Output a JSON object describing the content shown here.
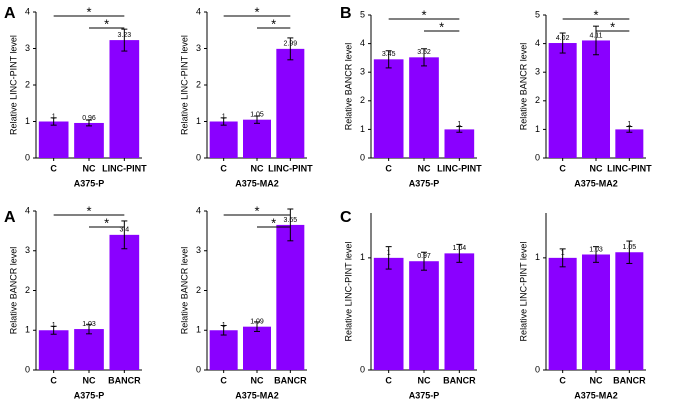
{
  "panel_letters": [
    "A",
    "B",
    "A",
    "C"
  ],
  "chart_data": [
    {
      "type": "bar",
      "y_label": "Relative LINC-PINT level",
      "x_label": "A375-P",
      "categories": [
        "C",
        "NC",
        "LINC-PINT"
      ],
      "values": [
        1,
        0.96,
        3.23
      ],
      "errors": [
        0.1,
        0.08,
        0.3
      ],
      "color": "#8a00ff",
      "ylim": [
        0,
        4
      ],
      "yticks": [
        0,
        1,
        2,
        3,
        4
      ],
      "annotations": [
        "*",
        "*"
      ]
    },
    {
      "type": "bar",
      "y_label": "Relative LINC-PINT level",
      "x_label": "A375-MA2",
      "categories": [
        "C",
        "NC",
        "LINC-PINT"
      ],
      "values": [
        1,
        1.05,
        2.99
      ],
      "errors": [
        0.1,
        0.1,
        0.3
      ],
      "color": "#8a00ff",
      "ylim": [
        0,
        4
      ],
      "yticks": [
        0,
        1,
        2,
        3,
        4
      ],
      "annotations": [
        "*",
        "*"
      ]
    },
    {
      "type": "bar",
      "y_label": "Relative BANCR level",
      "x_label": "A375-P",
      "categories": [
        "C",
        "NC",
        "LINC-PINT"
      ],
      "values": [
        3.45,
        3.52,
        1
      ],
      "errors": [
        0.3,
        0.3,
        0.1
      ],
      "color": "#8a00ff",
      "ylim": [
        0,
        5
      ],
      "yticks": [
        0,
        1,
        2,
        3,
        4,
        5
      ],
      "annotations": [
        "*",
        "*"
      ]
    },
    {
      "type": "bar",
      "y_label": "Relative BANCR level",
      "x_label": "A375-MA2",
      "categories": [
        "C",
        "NC",
        "LINC-PINT"
      ],
      "values": [
        4.02,
        4.11,
        1
      ],
      "errors": [
        0.35,
        0.5,
        0.1
      ],
      "color": "#8a00ff",
      "ylim": [
        0,
        5
      ],
      "yticks": [
        0,
        1,
        2,
        3,
        4,
        5
      ],
      "annotations": [
        "*",
        "*"
      ]
    },
    {
      "type": "bar",
      "y_label": "Relative BANCR level",
      "x_label": "A375-P",
      "categories": [
        "C",
        "NC",
        "BANCR"
      ],
      "values": [
        1,
        1.03,
        3.4
      ],
      "errors": [
        0.1,
        0.12,
        0.35
      ],
      "color": "#8a00ff",
      "ylim": [
        0,
        4
      ],
      "yticks": [
        0,
        1,
        2,
        3,
        4
      ],
      "annotations": [
        "*",
        "*"
      ]
    },
    {
      "type": "bar",
      "y_label": "Relative BANCR level",
      "x_label": "A375-MA2",
      "categories": [
        "C",
        "NC",
        "BANCR"
      ],
      "values": [
        1,
        1.09,
        3.65
      ],
      "errors": [
        0.12,
        0.12,
        0.4
      ],
      "color": "#8a00ff",
      "ylim": [
        0,
        4
      ],
      "yticks": [
        0,
        1,
        2,
        3,
        4
      ],
      "annotations": [
        "*",
        "*"
      ]
    },
    {
      "type": "bar",
      "y_label": "Relative LINC-PINT level",
      "x_label": "A375-P",
      "categories": [
        "C",
        "NC",
        "BANCR"
      ],
      "values": [
        1,
        0.97,
        1.04
      ],
      "errors": [
        0.1,
        0.08,
        0.08
      ],
      "color": "#8a00ff",
      "ylim": [
        0,
        1.4
      ],
      "yticks": [
        0,
        1
      ]
    },
    {
      "type": "bar",
      "y_label": "Relative LINC-PINT level",
      "x_label": "A375-MA2",
      "categories": [
        "C",
        "NC",
        "BANCR"
      ],
      "values": [
        1,
        1.03,
        1.05
      ],
      "errors": [
        0.08,
        0.07,
        0.1
      ],
      "color": "#8a00ff",
      "ylim": [
        0,
        1.4
      ],
      "yticks": [
        0,
        1
      ]
    }
  ]
}
